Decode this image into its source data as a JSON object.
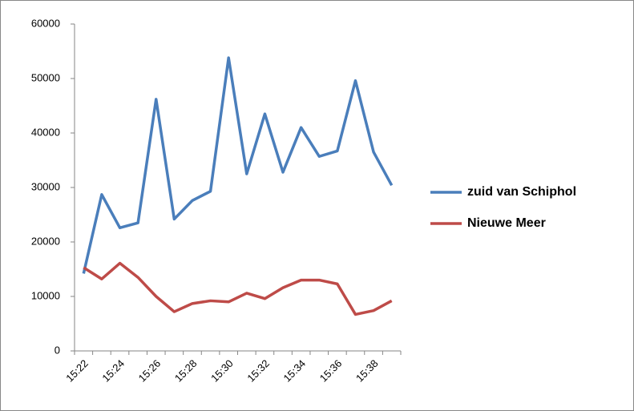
{
  "chart_data": {
    "type": "line",
    "categories": [
      "15:22",
      null,
      "15:24",
      null,
      "15:26",
      null,
      "15:28",
      null,
      "15:30",
      null,
      "15:32",
      null,
      "15:34",
      null,
      "15:36",
      null,
      "15:38",
      null
    ],
    "series": [
      {
        "name": "zuid van Schiphol",
        "color": "#4a7ebb",
        "values": [
          14200,
          28700,
          22600,
          23500,
          46200,
          24200,
          27600,
          29300,
          53800,
          32500,
          43500,
          32800,
          41000,
          35700,
          36700,
          49600,
          36500,
          30400
        ]
      },
      {
        "name": "Nieuwe Meer",
        "color": "#be4b48",
        "values": [
          15300,
          13200,
          16100,
          13500,
          10000,
          7200,
          8700,
          9200,
          9000,
          10600,
          9600,
          11600,
          13000,
          13000,
          12300,
          6700,
          7400,
          9200
        ]
      }
    ],
    "ylim": [
      0,
      60000
    ],
    "yticks": [
      0,
      10000,
      20000,
      30000,
      40000,
      50000,
      60000
    ],
    "grid": false,
    "legend": "right"
  }
}
